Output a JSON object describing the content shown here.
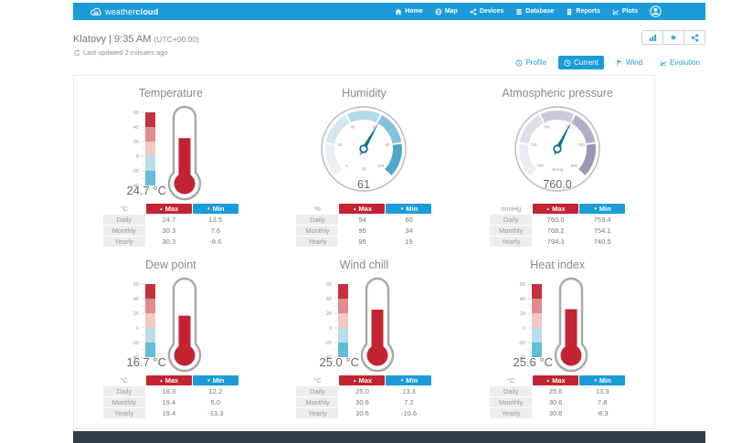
{
  "brand": {
    "name_light": "weather",
    "name_bold": "cloud"
  },
  "nav": {
    "items": [
      {
        "label": "Home"
      },
      {
        "label": "Map"
      },
      {
        "label": "Devices"
      },
      {
        "label": "Database"
      },
      {
        "label": "Reports"
      },
      {
        "label": "Plots"
      }
    ]
  },
  "station": {
    "name_time": "Klatovy | 9:35 AM",
    "tz": "(UTC+00:00)",
    "last_updated": "Last updated 2 minutes ago"
  },
  "tabs": [
    {
      "label": "Profile",
      "active": false
    },
    {
      "label": "Current",
      "active": true
    },
    {
      "label": "Wind",
      "active": false
    },
    {
      "label": "Evolution",
      "active": false
    }
  ],
  "colors": {
    "brand": "#1b9cd9",
    "max_red": "#c42331",
    "mercury": "#c32332",
    "needle": "#0d7199",
    "footer": "#313d49"
  },
  "thermo_scale_colors": [
    "#c4323e",
    "#e18a90",
    "#f0c9ca",
    "#b9dde9",
    "#64bcd6"
  ],
  "panels": [
    {
      "id": "temperature",
      "type": "thermometer",
      "title": "Temperature",
      "value": 24.7,
      "value_display": "24.7 °C",
      "scale": {
        "min": -40,
        "max": 60,
        "labels": [
          "60",
          "40",
          "20",
          "0",
          "-20",
          "-40"
        ]
      },
      "table": {
        "unit": "°C",
        "max_label": "Max",
        "min_label": "Min",
        "rows": [
          [
            "Daily",
            "24.7",
            "13.5"
          ],
          [
            "Monthly",
            "30.3",
            "7.6"
          ],
          [
            "Yearly",
            "30.3",
            "-8.6"
          ]
        ]
      }
    },
    {
      "id": "humidity",
      "type": "gauge",
      "title": "Humidity",
      "value": 61,
      "value_display": "61",
      "gauge": {
        "min": 0,
        "max": 100,
        "unit": "%",
        "tick_labels": [
          "0",
          "20",
          "40",
          "60",
          "80",
          "100"
        ],
        "colors": [
          "#e7f1f7",
          "#d2e7f0",
          "#b4d9e8",
          "#83c2da",
          "#4da7c9"
        ]
      },
      "table": {
        "unit": "%",
        "max_label": "Max",
        "min_label": "Min",
        "rows": [
          [
            "Daily",
            "94",
            "60"
          ],
          [
            "Monthly",
            "95",
            "34"
          ],
          [
            "Yearly",
            "95",
            "19"
          ]
        ]
      }
    },
    {
      "id": "pressure",
      "type": "gauge",
      "title": "Atmospheric pressure",
      "value": 760.0,
      "value_display": "760.0",
      "gauge": {
        "min": 700,
        "max": 800,
        "unit": "mmHg",
        "tick_labels": [
          "700",
          "720",
          "740",
          "760",
          "780",
          "800"
        ],
        "colors": [
          "#ebebf2",
          "#dedee9",
          "#c9c9da",
          "#b0afc9",
          "#9997b4"
        ]
      },
      "table": {
        "unit": "mmHg",
        "max_label": "Max",
        "min_label": "Min",
        "rows": [
          [
            "Daily",
            "760.0",
            "759.4"
          ],
          [
            "Monthly",
            "768.2",
            "754.1"
          ],
          [
            "Yearly",
            "794.3",
            "740.5"
          ]
        ]
      }
    },
    {
      "id": "dew-point",
      "type": "thermometer",
      "title": "Dew point",
      "value": 16.7,
      "value_display": "16.7 °C",
      "scale": {
        "min": -40,
        "max": 60,
        "labels": [
          "60",
          "40",
          "20",
          "0",
          "-20",
          "-40"
        ]
      },
      "table": {
        "unit": "°C",
        "max_label": "Max",
        "min_label": "Min",
        "rows": [
          [
            "Daily",
            "18.3",
            "12.2"
          ],
          [
            "Monthly",
            "19.4",
            "5.0"
          ],
          [
            "Yearly",
            "19.4",
            "-13.3"
          ]
        ]
      }
    },
    {
      "id": "wind-chill",
      "type": "thermometer",
      "title": "Wind chill",
      "value": 25.0,
      "value_display": "25.0 °C",
      "scale": {
        "min": -40,
        "max": 60,
        "labels": [
          "60",
          "40",
          "20",
          "0",
          "-20",
          "-40"
        ]
      },
      "table": {
        "unit": "°C",
        "max_label": "Max",
        "min_label": "Min",
        "rows": [
          [
            "Daily",
            "25.0",
            "13.3"
          ],
          [
            "Monthly",
            "30.6",
            "7.2"
          ],
          [
            "Yearly",
            "30.6",
            "-10.6"
          ]
        ]
      }
    },
    {
      "id": "heat-index",
      "type": "thermometer",
      "title": "Heat index",
      "value": 25.6,
      "value_display": "25.6 °C",
      "scale": {
        "min": -40,
        "max": 60,
        "labels": [
          "60",
          "40",
          "20",
          "0",
          "-20",
          "-40"
        ]
      },
      "table": {
        "unit": "°C",
        "max_label": "Max",
        "min_label": "Min",
        "rows": [
          [
            "Daily",
            "25.6",
            "13.3"
          ],
          [
            "Monthly",
            "30.6",
            "7.8"
          ],
          [
            "Yearly",
            "30.6",
            "-8.3"
          ]
        ]
      }
    }
  ]
}
